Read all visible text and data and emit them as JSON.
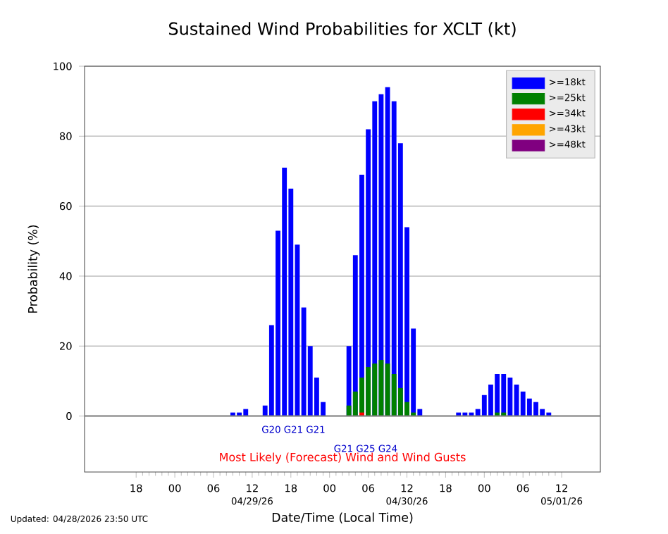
{
  "chart_data": {
    "type": "bar",
    "title": "Sustained Wind Probabilities for XCLT (kt)",
    "xlabel": "Date/Time (Local Time)",
    "ylabel": "Probability (%)",
    "x": [
      "2026-04-29T09:00",
      "2026-04-29T10:00",
      "2026-04-29T11:00",
      "2026-04-29T12:00",
      "2026-04-29T13:00",
      "2026-04-29T14:00",
      "2026-04-29T15:00",
      "2026-04-29T16:00",
      "2026-04-29T17:00",
      "2026-04-29T18:00",
      "2026-04-29T19:00",
      "2026-04-29T20:00",
      "2026-04-29T21:00",
      "2026-04-29T22:00",
      "2026-04-29T23:00",
      "2026-04-30T00:00",
      "2026-04-30T01:00",
      "2026-04-30T02:00",
      "2026-04-30T03:00",
      "2026-04-30T04:00",
      "2026-04-30T05:00",
      "2026-04-30T06:00",
      "2026-04-30T07:00",
      "2026-04-30T08:00",
      "2026-04-30T09:00",
      "2026-04-30T10:00",
      "2026-04-30T11:00",
      "2026-04-30T12:00",
      "2026-04-30T13:00",
      "2026-04-30T14:00",
      "2026-04-30T15:00",
      "2026-04-30T16:00",
      "2026-04-30T17:00",
      "2026-04-30T18:00",
      "2026-04-30T19:00",
      "2026-04-30T20:00",
      "2026-04-30T21:00",
      "2026-04-30T22:00",
      "2026-04-30T23:00",
      "2026-05-01T00:00",
      "2026-05-01T01:00",
      "2026-05-01T02:00",
      "2026-05-01T03:00",
      "2026-05-01T04:00",
      "2026-05-01T05:00",
      "2026-05-01T06:00",
      "2026-05-01T07:00",
      "2026-05-01T08:00",
      "2026-05-01T09:00",
      "2026-05-01T10:00"
    ],
    "series": [
      {
        "name": ">=18kt",
        "color": "#0000ff",
        "values": [
          1,
          1,
          2,
          0,
          0,
          3,
          26,
          53,
          71,
          65,
          49,
          31,
          20,
          11,
          4,
          0,
          0,
          0,
          20,
          46,
          69,
          82,
          90,
          92,
          94,
          90,
          78,
          54,
          25,
          2,
          0,
          0,
          0,
          0,
          0,
          1,
          1,
          1,
          2,
          6,
          9,
          12,
          12,
          11,
          9,
          7,
          5,
          4,
          2,
          1
        ]
      },
      {
        "name": ">=25kt",
        "color": "#008000",
        "values": [
          0,
          0,
          0,
          0,
          0,
          0,
          0,
          0,
          0,
          0,
          0,
          0,
          0,
          0,
          0,
          0,
          0,
          0,
          3,
          7,
          11,
          14,
          15,
          16,
          15,
          12,
          8,
          4,
          1,
          0,
          0,
          0,
          0,
          0,
          0,
          0,
          0,
          0,
          0,
          0,
          0,
          1,
          1,
          0,
          0,
          0,
          0,
          0,
          0,
          0
        ]
      },
      {
        "name": ">=34kt",
        "color": "#ff0000",
        "values": [
          0,
          0,
          0,
          0,
          0,
          0,
          0,
          0,
          0,
          0,
          0,
          0,
          0,
          0,
          0,
          0,
          0,
          0,
          0,
          0,
          1,
          0,
          0,
          0,
          0,
          0,
          0,
          0,
          0,
          0,
          0,
          0,
          0,
          0,
          0,
          0,
          0,
          0,
          0,
          0,
          0,
          0,
          0,
          0,
          0,
          0,
          0,
          0,
          0,
          0
        ]
      },
      {
        "name": ">=43kt",
        "color": "#ffa500",
        "values": [
          0,
          0,
          0,
          0,
          0,
          0,
          0,
          0,
          0,
          0,
          0,
          0,
          0,
          0,
          0,
          0,
          0,
          0,
          0,
          0,
          0,
          0,
          0,
          0,
          0,
          0,
          0,
          0,
          0,
          0,
          0,
          0,
          0,
          0,
          0,
          0,
          0,
          0,
          0,
          0,
          0,
          0,
          0,
          0,
          0,
          0,
          0,
          0,
          0,
          0
        ]
      },
      {
        "name": ">=48kt",
        "color": "#800080",
        "values": [
          0,
          0,
          0,
          0,
          0,
          0,
          0,
          0,
          0,
          0,
          0,
          0,
          0,
          0,
          0,
          0,
          0,
          0,
          0,
          0,
          0,
          0,
          0,
          0,
          0,
          0,
          0,
          0,
          0,
          0,
          0,
          0,
          0,
          0,
          0,
          0,
          0,
          0,
          0,
          0,
          0,
          0,
          0,
          0,
          0,
          0,
          0,
          0,
          0,
          0
        ]
      }
    ],
    "xlim": [
      "2026-04-28T10:00",
      "2026-05-01T18:00"
    ],
    "xticks": [
      {
        "value": "2026-04-28T18:00",
        "label": "18"
      },
      {
        "value": "2026-04-29T00:00",
        "label": "00"
      },
      {
        "value": "2026-04-29T06:00",
        "label": "06"
      },
      {
        "value": "2026-04-29T12:00",
        "label": "12"
      },
      {
        "value": "2026-04-29T18:00",
        "label": "18"
      },
      {
        "value": "2026-04-30T00:00",
        "label": "00"
      },
      {
        "value": "2026-04-30T06:00",
        "label": "06"
      },
      {
        "value": "2026-04-30T12:00",
        "label": "12"
      },
      {
        "value": "2026-04-30T18:00",
        "label": "18"
      },
      {
        "value": "2026-05-01T00:00",
        "label": "00"
      },
      {
        "value": "2026-05-01T06:00",
        "label": "06"
      },
      {
        "value": "2026-05-01T12:00",
        "label": "12"
      }
    ],
    "ylim": [
      -16,
      100
    ],
    "yticks": [
      0,
      20,
      40,
      60,
      80,
      100
    ],
    "grid": "y",
    "legend": "top right",
    "ref_lines": [
      {
        "axis": "y",
        "value": 0,
        "color": "#808080"
      }
    ],
    "annotations": [
      "04/29/26",
      "04/30/26",
      "05/01/26",
      "G20   G21   G21",
      "G21   G25   G24",
      "Most Likely (Forecast) Wind and Wind Gusts",
      "Updated: 04/28/2026 23:50 UTC"
    ]
  }
}
